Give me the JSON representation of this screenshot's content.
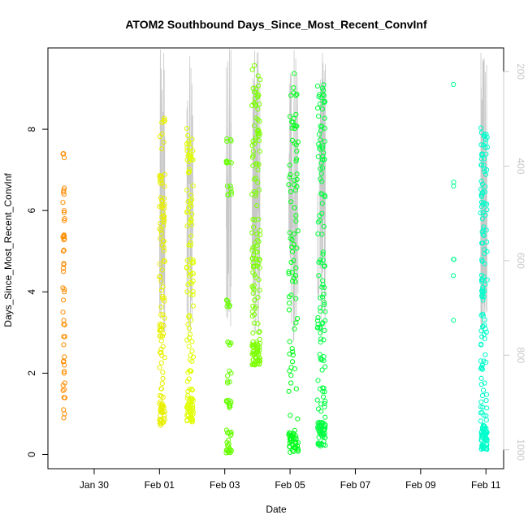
{
  "chart_data": {
    "type": "scatter",
    "title": "ATOM2 Southbound Days_Since_Most_Recent_ConvInf",
    "xlabel": "Date",
    "ylabel": "Days_Since_Most_Recent_ConvInf",
    "x_ticks": [
      "Jan 30",
      "Feb 01",
      "Feb 03",
      "Feb 05",
      "Feb 07",
      "Feb 09",
      "Feb 11"
    ],
    "y_ticks": [
      "0",
      "2",
      "4",
      "6",
      "8"
    ],
    "y2_ticks": [
      "200",
      "400",
      "600",
      "800",
      "1000"
    ],
    "xlim": [
      "2018-01-28T14:00",
      "2018-02-11T13:00"
    ],
    "ylim": [
      -0.35,
      10
    ],
    "y2lim": [
      1040,
      150
    ],
    "marker": "open-circle",
    "line_color": "#c8c8c8",
    "right_axis_color": "#c8c8c8",
    "groups": [
      {
        "date": "2018-01-29",
        "x_range": [
          "2018-01-29T01:00",
          "2018-01-29T02:30"
        ],
        "color": "#FF8C00",
        "n": 50,
        "values": [
          0.9,
          1.0,
          1.1,
          1.4,
          1.6,
          1.7,
          2.0,
          2.2,
          2.3,
          2.4,
          2.7,
          2.9,
          3.2,
          3.3,
          3.5,
          3.8,
          4.0,
          4.1,
          4.5,
          4.7,
          5.0,
          5.3,
          5.4,
          5.8,
          6.0,
          6.2,
          6.4,
          6.5,
          7.3,
          7.4
        ]
      },
      {
        "date": "2018-02-01",
        "x_range": [
          "2018-02-01T00:00",
          "2018-02-01T04:00"
        ],
        "color": "#E8F000",
        "n": 130,
        "values_range": [
          0.7,
          8.4
        ]
      },
      {
        "date": "2018-02-01",
        "x_range": [
          "2018-02-01T20:00",
          "2018-02-02T01:00"
        ],
        "color": "#E0FF00",
        "n": 140,
        "values_range": [
          0.8,
          8.1
        ]
      },
      {
        "date": "2018-02-03",
        "x_range": [
          "2018-02-03T01:00",
          "2018-02-03T05:00"
        ],
        "color": "#66FF00",
        "n": 70,
        "values": [
          0.05,
          0.1,
          0.2,
          0.3,
          0.5,
          0.6,
          1.2,
          1.3,
          1.8,
          2.0,
          2.7,
          3.7,
          3.8,
          6.4,
          6.6,
          7.2,
          7.7
        ]
      },
      {
        "date": "2018-02-03",
        "x_range": [
          "2018-02-03T20:00",
          "2018-02-04T02:00"
        ],
        "color": "#7CFF00",
        "n": 160,
        "values_range": [
          2.2,
          9.6
        ]
      },
      {
        "date": "2018-02-05",
        "x_range": [
          "2018-02-04T23:00",
          "2018-02-05T06:00"
        ],
        "color": "#00FF1A",
        "n": 120,
        "values_range": [
          0.0,
          9.4
        ]
      },
      {
        "date": "2018-02-05",
        "x_range": [
          "2018-02-05T20:00",
          "2018-02-06T02:00"
        ],
        "color": "#00FF40",
        "n": 160,
        "values_range": [
          0.2,
          9.1
        ]
      },
      {
        "date": "2018-02-10",
        "x_range": [
          "2018-02-10T00:00",
          "2018-02-10T00:30"
        ],
        "color": "#00FF90",
        "n": 7,
        "values": [
          3.3,
          4.4,
          4.8,
          6.6,
          6.7,
          9.1
        ]
      },
      {
        "date": "2018-02-11",
        "x_range": [
          "2018-02-10T20:00",
          "2018-02-11T01:00"
        ],
        "color": "#00FFCC",
        "n": 180,
        "values_range": [
          0.1,
          8.1
        ]
      }
    ]
  }
}
